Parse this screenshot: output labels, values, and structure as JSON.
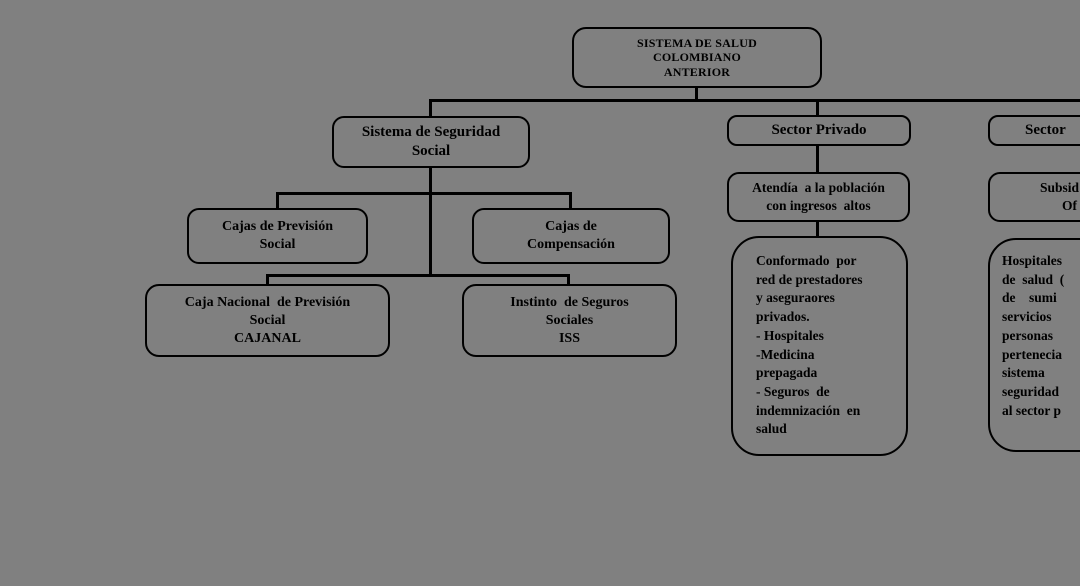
{
  "colors": {
    "background": "#808080",
    "line": "#000000",
    "text": "#000000"
  },
  "diagram": {
    "root": {
      "lines": [
        "SISTEMA DE SALUD",
        "COLOMBIANO",
        "ANTERIOR"
      ]
    },
    "seguridad_social": {
      "lines": [
        "Sistema de Seguridad",
        "Social"
      ]
    },
    "sector_privado": {
      "label": "Sector Privado"
    },
    "sector_right": {
      "label": "Sector"
    },
    "cajas_prevision": {
      "lines": [
        "Cajas de Previsión",
        "Social"
      ]
    },
    "cajas_compensacion": {
      "lines": [
        "Cajas de",
        "Compensación"
      ]
    },
    "cajanal": {
      "lines": [
        "Caja Nacional  de Previsión",
        "Social",
        "CAJANAL"
      ]
    },
    "iss": {
      "lines": [
        "Instinto  de Seguros",
        "Sociales",
        "ISS"
      ]
    },
    "atendia": {
      "lines": [
        "Atendía  a la población",
        "con ingresos  altos"
      ]
    },
    "subsidios": {
      "line1": "Subsid",
      "line2": "Of"
    },
    "conformado": {
      "lines": [
        "Conformado  por",
        "red de prestadores",
        "y aseguraores",
        "privados.",
        "- Hospitales",
        "-Medicina",
        "prepagada",
        "- Seguros  de",
        "indemnización  en",
        "salud"
      ]
    },
    "hospitales": {
      "lines": [
        "Hospitales",
        "de  salud  (",
        "de    sumi",
        "servicios",
        "personas",
        "pertenecia",
        "sistema",
        "seguridad",
        "al sector p"
      ]
    }
  }
}
